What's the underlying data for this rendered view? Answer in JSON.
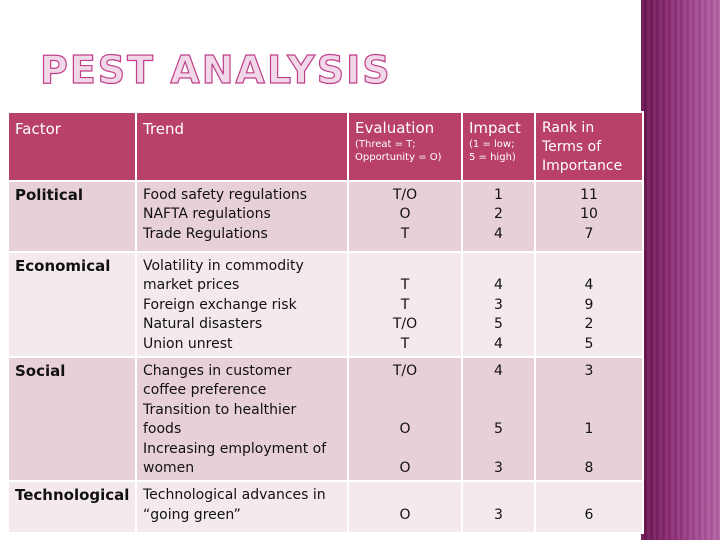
{
  "title": "PEST Analysis",
  "header": {
    "factor": "Factor",
    "trend": "Trend",
    "evaluation": "Evaluation",
    "evaluation_sub_1": "(Threat = T;",
    "evaluation_sub_2": "Opportunity = O)",
    "impact": "Impact",
    "impact_sub_1": "(1 = low;",
    "impact_sub_2": "5 = high)",
    "rank_1": "Rank in",
    "rank_2": "Terms of",
    "rank_3": "Importance"
  },
  "rows": [
    {
      "factor": "Political",
      "trend": [
        "Food safety regulations",
        "NAFTA regulations",
        "Trade Regulations"
      ],
      "evaluation": [
        "T/O",
        "O",
        "T"
      ],
      "impact": [
        "1",
        "2",
        "4"
      ],
      "rank": [
        "11",
        "10",
        "7"
      ]
    },
    {
      "factor": "Economical",
      "trend": [
        "Volatility in commodity",
        "market prices",
        "Foreign exchange risk",
        "Natural disasters",
        "Union unrest"
      ],
      "evaluation": [
        "",
        "T",
        "T",
        "T/O",
        "T"
      ],
      "impact": [
        "",
        "4",
        "3",
        "5",
        "4"
      ],
      "rank": [
        "",
        "4",
        "9",
        "2",
        "5"
      ]
    },
    {
      "factor": "Social",
      "trend": [
        "Changes in customer",
        "coffee preference",
        "Transition to healthier",
        "foods",
        "Increasing employment of",
        "women"
      ],
      "evaluation": [
        "T/O",
        "",
        "",
        "O",
        "",
        "O"
      ],
      "impact": [
        "4",
        "",
        "",
        "5",
        "",
        "3"
      ],
      "rank": [
        "3",
        "",
        "",
        "1",
        "",
        "8"
      ]
    },
    {
      "factor": "Technological",
      "trend": [
        "Technological advances in",
        "“going green”"
      ],
      "evaluation": [
        "",
        "O"
      ],
      "impact": [
        "",
        "3"
      ],
      "rank": [
        "",
        "6"
      ]
    }
  ],
  "colors": {
    "header_bg": "#b8406a",
    "row_dark": "#e8d0d8",
    "row_light": "#f4e9ed",
    "title": "#c13f8a",
    "side_band": "#8a2a73"
  }
}
